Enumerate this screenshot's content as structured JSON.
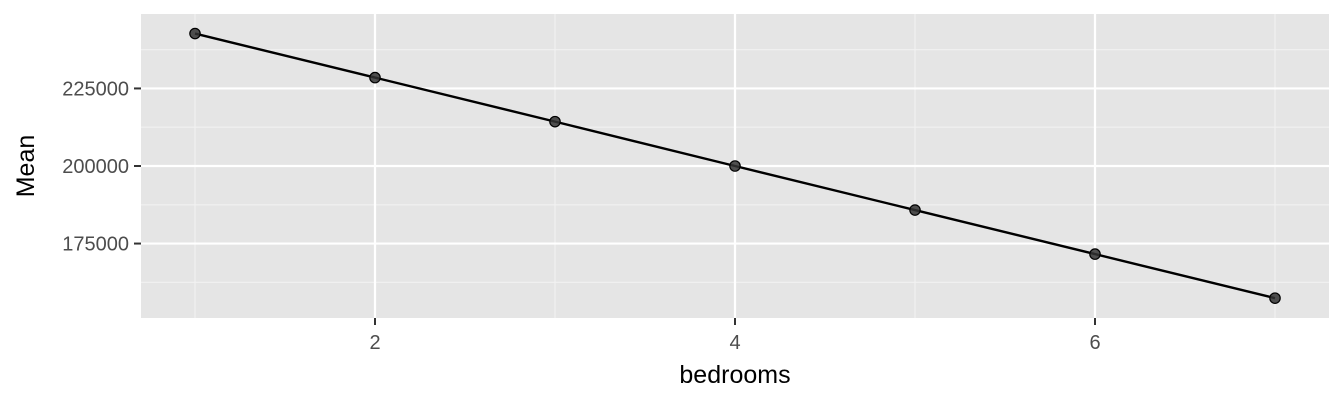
{
  "chart_data": {
    "type": "line",
    "title": "",
    "xlabel": "bedrooms",
    "ylabel": "Mean",
    "x_ticks": [
      2,
      4,
      6
    ],
    "y_ticks": [
      175000,
      200000,
      225000
    ],
    "x_tick_labels": [
      "2",
      "4",
      "6"
    ],
    "y_tick_labels": [
      "175000",
      "200000",
      "225000"
    ],
    "xlim": [
      0.7,
      7.3
    ],
    "ylim": [
      151000,
      249000
    ],
    "grid": true,
    "legend": "none",
    "series": [
      {
        "x": [
          1,
          2,
          3,
          4,
          5,
          6,
          7
        ],
        "values": [
          242700,
          228500,
          214300,
          200000,
          185800,
          171600,
          157400
        ],
        "markers": true
      }
    ],
    "colors": {
      "panel_background": "#e5e5e5",
      "grid_major": "#ffffff",
      "line": "#000000",
      "point": "#333333"
    }
  }
}
